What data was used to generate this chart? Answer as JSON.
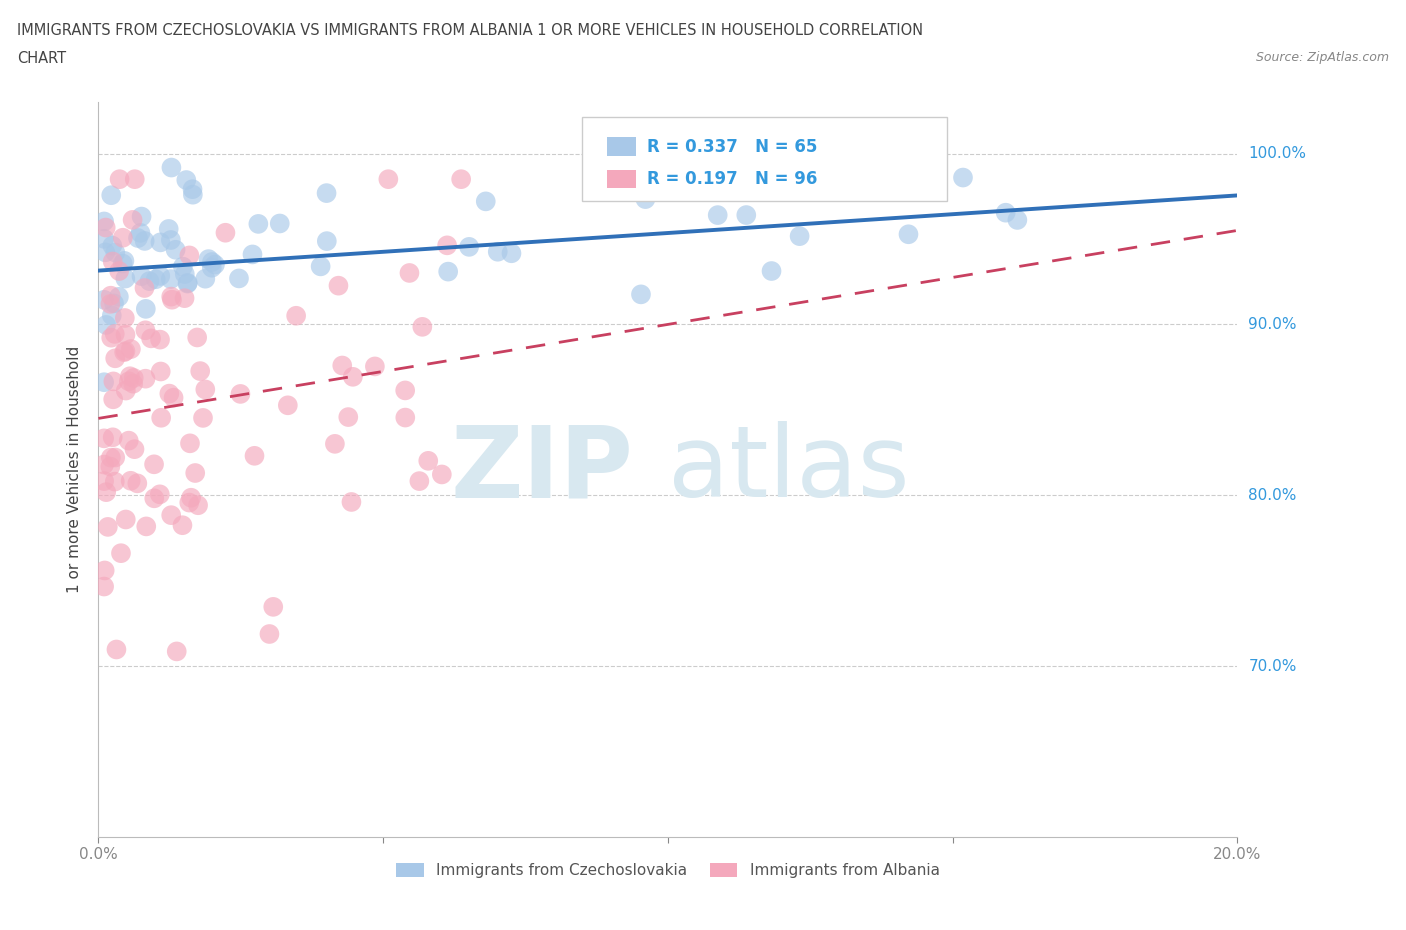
{
  "title_line1": "IMMIGRANTS FROM CZECHOSLOVAKIA VS IMMIGRANTS FROM ALBANIA 1 OR MORE VEHICLES IN HOUSEHOLD CORRELATION",
  "title_line2": "CHART",
  "source": "Source: ZipAtlas.com",
  "ylabel": "1 or more Vehicles in Household",
  "xlim": [
    0.0,
    0.2
  ],
  "ylim": [
    0.6,
    1.03
  ],
  "ytick_positions": [
    0.7,
    0.8,
    0.9,
    1.0
  ],
  "ytick_labels": [
    "70.0%",
    "80.0%",
    "90.0%",
    "100.0%"
  ],
  "legend_R_czech": "0.337",
  "legend_N_czech": "65",
  "legend_R_albania": "0.197",
  "legend_N_albania": "96",
  "color_czech": "#a8c8e8",
  "color_albania": "#f4a8bc",
  "trendline_czech_color": "#3070b8",
  "trendline_albania_color": "#c84060",
  "watermark_zip": "ZIP",
  "watermark_atlas": "atlas",
  "czech_intercept": 0.9315,
  "czech_slope": 0.22,
  "albania_intercept": 0.845,
  "albania_slope": 0.55
}
